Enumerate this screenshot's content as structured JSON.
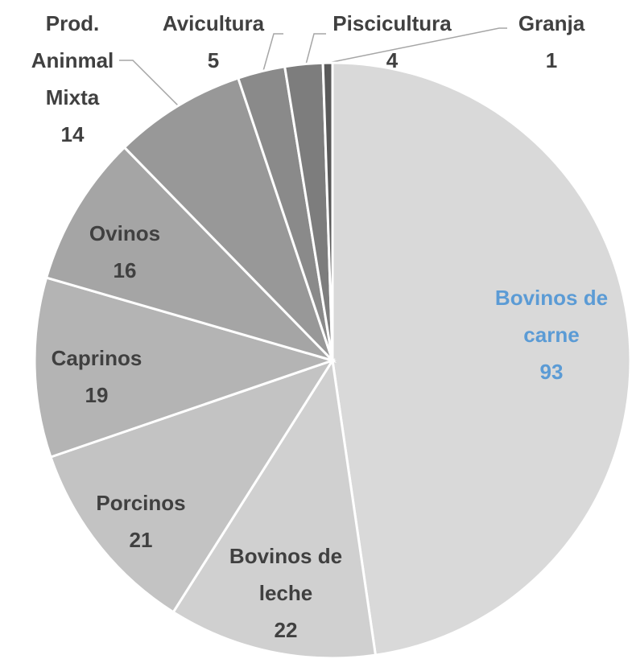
{
  "chart_data": {
    "type": "pie",
    "categories": [
      "Bovinos de carne",
      "Bovinos de leche",
      "Porcinos",
      "Caprinos",
      "Ovinos",
      "Prod. Aninmal Mixta",
      "Avicultura",
      "Piscicultura",
      "Granja"
    ],
    "values": [
      93,
      22,
      21,
      19,
      16,
      14,
      5,
      4,
      1
    ],
    "colors": [
      "#d9d9d9",
      "#d0d0d0",
      "#c3c3c3",
      "#b4b4b4",
      "#a5a5a5",
      "#989898",
      "#8a8a8a",
      "#7d7d7d",
      "#5a5a5a"
    ],
    "label_colors": [
      "#5b9bd5",
      "#404040",
      "#404040",
      "#404040",
      "#404040",
      "#404040",
      "#404040",
      "#404040",
      "#404040"
    ]
  }
}
